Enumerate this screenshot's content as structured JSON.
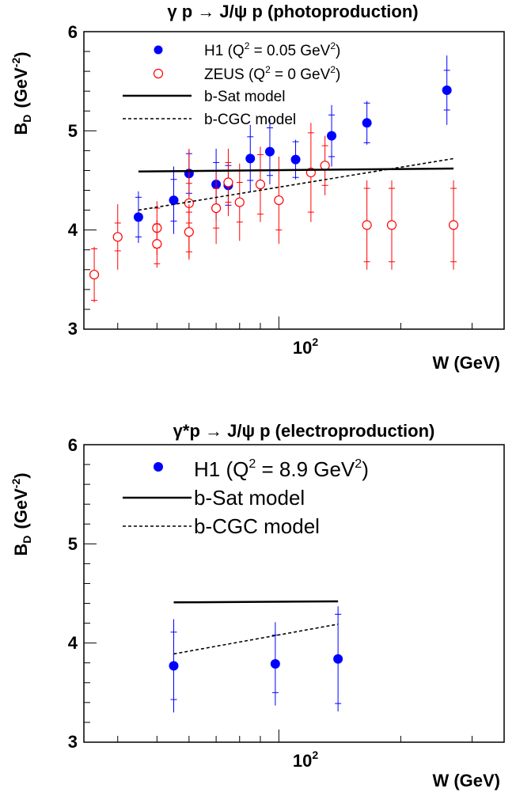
{
  "chart_data": [
    {
      "type": "scatter",
      "title": "γ p → J/ψ p  (photoproduction)",
      "xlabel": "W  (GeV)",
      "ylabel": "B_D  (GeV^-2)",
      "xscale": "log",
      "xlim": [
        33,
        360
      ],
      "ylim": [
        3,
        6
      ],
      "yticks": [
        "3",
        "4",
        "5",
        "6"
      ],
      "xtick_label": "10^2",
      "legend_placement": "top",
      "series": [
        {
          "name": "H1  (Q^2 = 0.05 GeV^2)",
          "marker": "filled-circle",
          "color": "#0000ff",
          "x": [
            45,
            55,
            60,
            70,
            75,
            85,
            95,
            110,
            135,
            165,
            260
          ],
          "y": [
            4.13,
            4.3,
            4.57,
            4.46,
            4.45,
            4.72,
            4.79,
            4.71,
            4.95,
            5.08,
            5.41
          ],
          "yerr_stat": [
            0.2,
            0.21,
            0.2,
            0.22,
            0.2,
            0.22,
            0.24,
            0.18,
            0.21,
            0.2,
            0.2
          ],
          "yerr_tot": [
            0.26,
            0.34,
            0.23,
            0.36,
            0.24,
            0.34,
            0.33,
            0.2,
            0.31,
            0.22,
            0.35
          ]
        },
        {
          "name": "ZEUS  (Q^2 = 0 GeV^2)",
          "marker": "open-circle",
          "color": "#ff0000",
          "x": [
            35,
            40,
            50,
            50,
            60,
            60,
            70,
            75,
            80,
            90,
            100,
            120,
            130,
            165,
            190,
            270
          ],
          "y": [
            3.55,
            3.93,
            4.02,
            3.86,
            4.27,
            3.98,
            4.22,
            4.48,
            4.28,
            4.46,
            4.3,
            4.58,
            4.65,
            4.05,
            4.05,
            4.05
          ],
          "yerr_stat": [
            0.26,
            0.14,
            0.2,
            0.2,
            0.2,
            0.2,
            0.2,
            0.2,
            0.2,
            0.3,
            0.3,
            0.4,
            0.2,
            0.37,
            0.37,
            0.37
          ],
          "yerr_tot": [
            0.28,
            0.33,
            0.27,
            0.24,
            0.55,
            0.28,
            0.36,
            0.34,
            0.39,
            0.38,
            0.44,
            0.5,
            0.3,
            0.45,
            0.45,
            0.45
          ]
        },
        {
          "name": "b-Sat model",
          "style": "solid",
          "x": [
            45,
            270
          ],
          "y": [
            4.59,
            4.62
          ]
        },
        {
          "name": "b-CGC model",
          "style": "dashed",
          "x": [
            45,
            270
          ],
          "y": [
            4.2,
            4.72
          ]
        }
      ]
    },
    {
      "type": "scatter",
      "title": "γ*p → J/ψ p  (electroproduction)",
      "xlabel": "W  (GeV)",
      "ylabel": "B_D  (GeV^-2)",
      "xscale": "log",
      "xlim": [
        33,
        360
      ],
      "ylim": [
        3,
        6
      ],
      "yticks": [
        "3",
        "4",
        "5",
        "6"
      ],
      "xtick_label": "10^2",
      "legend_placement": "top",
      "series": [
        {
          "name": "H1  (Q^2 = 8.9 GeV^2)",
          "marker": "filled-circle",
          "color": "#0000ff",
          "x": [
            55,
            98,
            140
          ],
          "y": [
            3.77,
            3.79,
            3.84
          ],
          "yerr_stat": [
            0.34,
            0.29,
            0.45
          ],
          "yerr_tot": [
            0.47,
            0.42,
            0.53
          ]
        },
        {
          "name": "b-Sat model",
          "style": "solid",
          "x": [
            55,
            140
          ],
          "y": [
            4.41,
            4.42
          ]
        },
        {
          "name": "b-CGC model",
          "style": "dashed",
          "x": [
            55,
            140
          ],
          "y": [
            3.89,
            4.19
          ]
        }
      ]
    }
  ]
}
